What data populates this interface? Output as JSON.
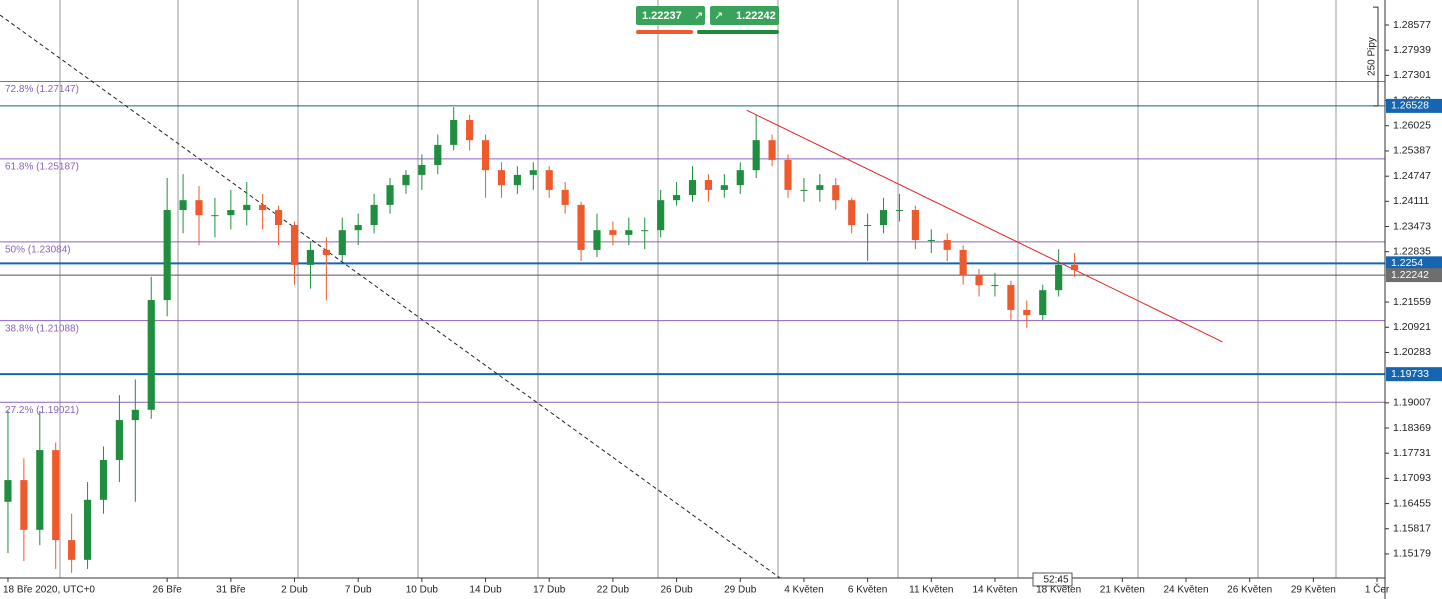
{
  "chart_data": {
    "type": "candlestick",
    "categories": [
      "18 Bře 2020, UTC+0",
      null,
      null,
      null,
      null,
      null,
      null,
      null,
      null,
      null,
      "26 Bře",
      null,
      null,
      null,
      "31 Bře",
      null,
      null,
      null,
      "2 Dub",
      null,
      null,
      null,
      "7 Dub",
      null,
      null,
      null,
      "10 Dub",
      null,
      null,
      null,
      "14 Dub",
      null,
      null,
      null,
      "17 Dub",
      null,
      null,
      null,
      "22 Dub",
      null,
      null,
      null,
      "26 Dub",
      null,
      null,
      null,
      "29 Dub",
      null,
      null,
      null,
      "4 Květen",
      null,
      null,
      null,
      "6 Květen",
      null,
      null,
      null,
      "11 Květen",
      null,
      null,
      null,
      "14 Květen",
      null,
      null,
      null,
      "18 Květen",
      null,
      null,
      null,
      "21 Květen",
      null,
      null,
      null,
      "24 Květen",
      null,
      null,
      null,
      "26 Květen",
      null,
      null,
      null,
      "29 Květen",
      null,
      null,
      null,
      "1 Čer"
    ],
    "open": [
      1.165,
      1.1705,
      1.1579,
      1.1781,
      1.1553,
      1.1503,
      1.1655,
      1.1756,
      1.1857,
      1.1883,
      1.2161,
      1.2389,
      1.2414,
      1.2376,
      1.2376,
      1.2389,
      1.2402,
      1.2389,
      1.2351,
      1.225,
      1.2288,
      1.2275,
      1.2338,
      1.2351,
      1.2402,
      1.2452,
      1.2478,
      1.2503,
      1.2554,
      1.2617,
      1.2566,
      1.249,
      1.2452,
      1.2478,
      1.249,
      1.244,
      1.2402,
      1.2288,
      1.2338,
      1.2326,
      1.2338,
      1.2338,
      1.2414,
      1.2427,
      1.2465,
      1.244,
      1.2452,
      1.249,
      1.2566,
      1.2516,
      1.244,
      1.244,
      1.2452,
      1.2414,
      1.2351,
      1.2351,
      1.2389,
      1.2389,
      1.2313,
      1.2313,
      1.2288,
      1.2224,
      1.2199,
      1.2199,
      1.2136,
      1.2123,
      1.2186,
      1.225,
      null,
      null,
      null,
      null,
      null,
      null,
      null,
      null,
      null,
      null,
      null,
      null,
      null,
      null,
      null,
      null,
      null,
      null,
      null
    ],
    "high": [
      1.188,
      1.176,
      1.188,
      1.18,
      1.162,
      1.17,
      1.179,
      1.192,
      1.196,
      1.222,
      1.247,
      1.248,
      1.245,
      1.242,
      1.244,
      1.246,
      1.243,
      1.24,
      1.236,
      1.231,
      1.232,
      1.237,
      1.238,
      1.243,
      1.247,
      1.249,
      1.253,
      1.258,
      1.265,
      1.263,
      1.258,
      1.251,
      1.25,
      1.251,
      1.25,
      1.246,
      1.241,
      1.238,
      1.236,
      1.237,
      1.237,
      1.244,
      1.246,
      1.25,
      1.248,
      1.248,
      1.251,
      1.263,
      1.258,
      1.253,
      1.247,
      1.248,
      1.247,
      1.242,
      1.238,
      1.242,
      1.243,
      1.24,
      1.234,
      1.233,
      1.23,
      1.224,
      1.223,
      1.221,
      1.216,
      1.22,
      1.229,
      1.228,
      null,
      null,
      null,
      null,
      null,
      null,
      null,
      null,
      null,
      null,
      null,
      null,
      null,
      null,
      null,
      null,
      null,
      null,
      null
    ],
    "low": [
      1.152,
      1.15,
      1.154,
      1.148,
      1.147,
      1.148,
      1.162,
      1.17,
      1.165,
      1.186,
      1.212,
      1.233,
      1.23,
      1.232,
      1.234,
      1.235,
      1.234,
      1.23,
      1.22,
      1.219,
      1.216,
      1.226,
      1.23,
      1.233,
      1.238,
      1.243,
      1.244,
      1.248,
      1.254,
      1.254,
      1.242,
      1.242,
      1.243,
      1.244,
      1.242,
      1.238,
      1.226,
      1.227,
      1.23,
      1.23,
      1.229,
      1.232,
      1.24,
      1.241,
      1.241,
      1.242,
      1.243,
      1.247,
      1.25,
      1.242,
      1.241,
      1.241,
      1.239,
      1.233,
      1.226,
      1.233,
      1.236,
      1.229,
      1.228,
      1.226,
      1.22,
      1.217,
      1.217,
      1.211,
      1.209,
      1.211,
      1.217,
      1.222,
      null,
      null,
      null,
      null,
      null,
      null,
      null,
      null,
      null,
      null,
      null,
      null,
      null,
      null,
      null,
      null,
      null,
      null,
      null
    ],
    "close": [
      1.1705,
      1.1579,
      1.1781,
      1.1553,
      1.1503,
      1.1655,
      1.1756,
      1.1857,
      1.1883,
      1.2161,
      1.2389,
      1.2414,
      1.2376,
      1.2376,
      1.2389,
      1.2402,
      1.2389,
      1.2351,
      1.225,
      1.2288,
      1.2275,
      1.2338,
      1.2351,
      1.2402,
      1.2452,
      1.2478,
      1.2503,
      1.2554,
      1.2617,
      1.2566,
      1.249,
      1.2452,
      1.2478,
      1.249,
      1.244,
      1.2402,
      1.2288,
      1.2338,
      1.2326,
      1.2338,
      1.2338,
      1.2414,
      1.2427,
      1.2465,
      1.244,
      1.2452,
      1.249,
      1.2566,
      1.2516,
      1.244,
      1.244,
      1.2452,
      1.2414,
      1.2351,
      1.2351,
      1.2389,
      1.2389,
      1.2313,
      1.2313,
      1.2288,
      1.2224,
      1.2199,
      1.2199,
      1.2136,
      1.2123,
      1.2186,
      1.225,
      1.2237,
      null,
      null,
      null,
      null,
      null,
      null,
      null,
      null,
      null,
      null,
      null,
      null,
      null,
      null,
      null,
      null,
      null,
      null,
      null
    ],
    "up_color": "#1f8f3f",
    "down_color": "#ee5a2c",
    "ylim": [
      1.1457,
      1.2921
    ],
    "yticks": [
      1.28577,
      1.27939,
      1.27301,
      1.26663,
      1.26025,
      1.25387,
      1.24747,
      1.24111,
      1.23473,
      1.22835,
      1.21559,
      1.20921,
      1.20283,
      1.19007,
      1.18369,
      1.17731,
      1.17093,
      1.16455,
      1.15817,
      1.15179
    ],
    "fib_levels": [
      {
        "label": "72.8% (1.27147)",
        "value": 1.27147
      },
      {
        "label": "61.8% (1.25187)",
        "value": 1.25187
      },
      {
        "label": "50% (1.23084)",
        "value": 1.23084
      },
      {
        "label": "38.8% (1.21088)",
        "value": 1.21088
      },
      {
        "label": "27.2% (1.19021)",
        "value": 1.19021
      }
    ],
    "fib_color": "#8a63c0",
    "price_lines": [
      {
        "value": 1.26528,
        "color": "#0e6b78",
        "label_color": "#1565b0"
      },
      {
        "value": 1.2254,
        "color": "#1565b0",
        "label_color": "#1565b0"
      },
      {
        "value": 1.19733,
        "color": "#1565b0",
        "label_color": "#1565b0"
      },
      {
        "value": 1.22242,
        "color": "#555555",
        "label_color": "#6e6e6e"
      }
    ],
    "trendlines": [
      {
        "x": [
          46.4,
          76.3
        ],
        "y": [
          1.2642,
          1.2055
        ],
        "color": "#e82020",
        "dashed": false
      },
      {
        "x": [
          -0.5,
          48.5
        ],
        "y": [
          1.2883,
          1.1457
        ],
        "color": "#222222",
        "dashed": true
      }
    ],
    "range_note": {
      "label": "250 Pipy",
      "from": 1.26528,
      "to": 1.29028
    }
  },
  "trade_panel": {
    "sell": "1.22237",
    "buy": "1.22242",
    "timer": "52:45"
  }
}
